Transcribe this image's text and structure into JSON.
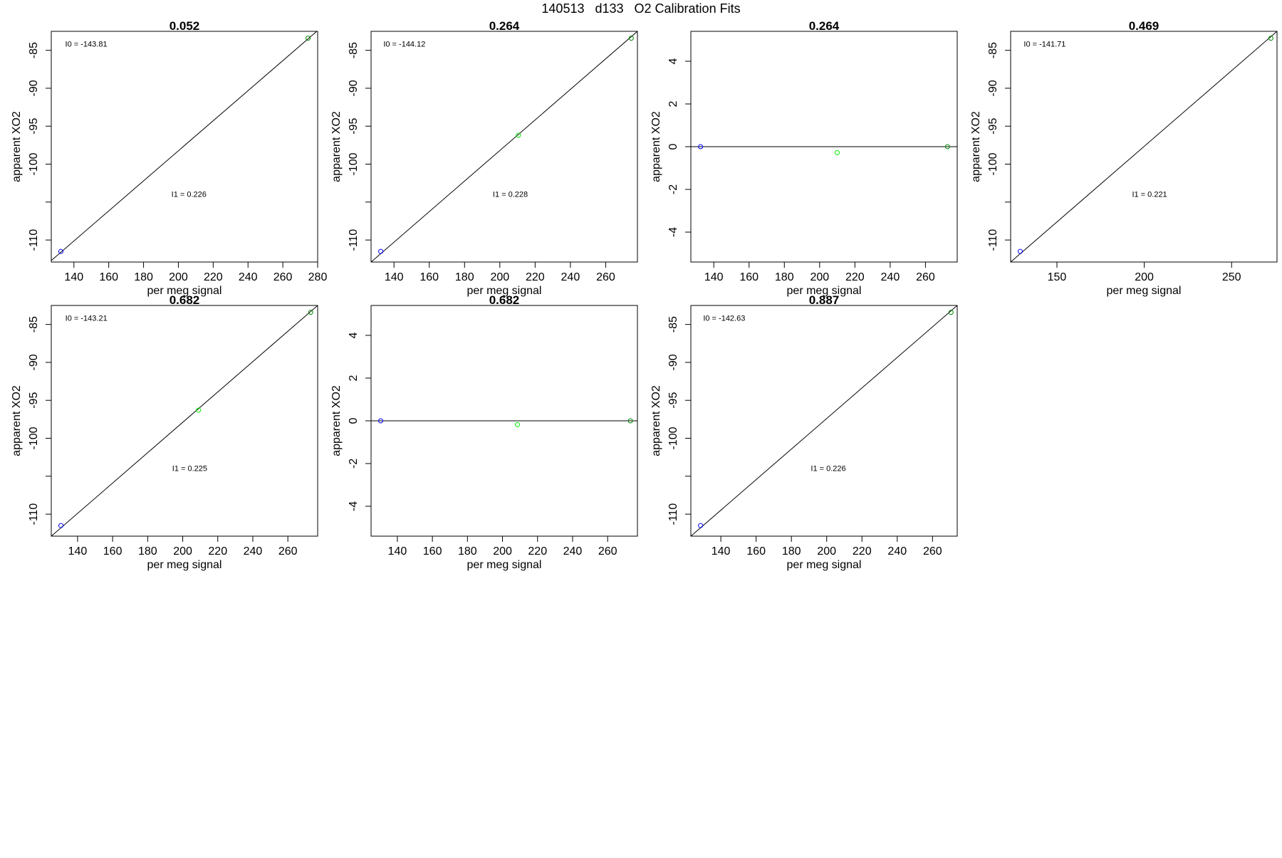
{
  "page": {
    "title": "140513   d133   O2 Calibration Fits"
  },
  "colors": {
    "fit_line": "#000000",
    "point_low": "#0000ff",
    "point_mid": "#00ee00",
    "point_high": "#008800",
    "axis": "#000000"
  },
  "chart_data": [
    {
      "type": "scatter",
      "title": "0.052",
      "xlabel": "per meg signal",
      "ylabel": "apparent XO2",
      "xlim": [
        127,
        280
      ],
      "ylim": [
        -112.9,
        -82.5
      ],
      "xticks": [
        140,
        160,
        180,
        200,
        220,
        240,
        260,
        280
      ],
      "yticks": [
        -110,
        -105,
        -100,
        -95,
        -90,
        -85
      ],
      "yticklabels": [
        "-110",
        "",
        "-100",
        "-95",
        "-90",
        "-85"
      ],
      "points": [
        {
          "x": 132.5,
          "y": -111.5,
          "color": "blue"
        },
        {
          "x": 274.5,
          "y": -83.4,
          "color": "darkgreen"
        }
      ],
      "line": {
        "x1": 127,
        "y1": -112.7,
        "x2": 280,
        "y2": -82.4
      },
      "annotations": [
        {
          "label": "I0 =  -143.81",
          "x": 135,
          "y": -84.5
        },
        {
          "label": "I1 =  0.226",
          "x": 196,
          "y": -104.3
        }
      ]
    },
    {
      "type": "scatter",
      "title": "0.264",
      "xlabel": "per meg signal",
      "ylabel": "apparent XO2",
      "xlim": [
        127,
        278
      ],
      "ylim": [
        -112.9,
        -82.5
      ],
      "xticks": [
        140,
        160,
        180,
        200,
        220,
        240,
        260
      ],
      "yticks": [
        -110,
        -105,
        -100,
        -95,
        -90,
        -85
      ],
      "yticklabels": [
        "-110",
        "",
        "-100",
        "-95",
        "-90",
        "-85"
      ],
      "points": [
        {
          "x": 132.5,
          "y": -111.5,
          "color": "blue"
        },
        {
          "x": 210.5,
          "y": -96.2,
          "color": "green"
        },
        {
          "x": 274.5,
          "y": -83.4,
          "color": "darkgreen"
        }
      ],
      "line": {
        "x1": 127,
        "y1": -112.9,
        "x2": 278,
        "y2": -82.5
      },
      "annotations": [
        {
          "label": "I0 =  -144.12",
          "x": 134,
          "y": -84.5
        },
        {
          "label": "I1 =  0.228",
          "x": 196,
          "y": -104.3
        }
      ]
    },
    {
      "type": "scatter",
      "title": "0.264",
      "xlabel": "per meg signal",
      "ylabel": "apparent XO2",
      "xlim": [
        127,
        278
      ],
      "ylim": [
        -5.4,
        5.4
      ],
      "xticks": [
        140,
        160,
        180,
        200,
        220,
        240,
        260
      ],
      "yticks": [
        -4,
        -2,
        0,
        2,
        4
      ],
      "yticklabels": [
        "-4",
        "-2",
        "0",
        "2",
        "4"
      ],
      "points": [
        {
          "x": 132.5,
          "y": 0.0,
          "color": "blue"
        },
        {
          "x": 210,
          "y": -0.28,
          "color": "green"
        },
        {
          "x": 272.5,
          "y": 0.0,
          "color": "darkgreen"
        }
      ],
      "line": {
        "x1": 127,
        "y1": 0,
        "x2": 278,
        "y2": 0
      },
      "annotations": []
    },
    {
      "type": "scatter",
      "title": "0.469",
      "xlabel": "per meg signal",
      "ylabel": "apparent XO2",
      "xlim": [
        123.5,
        276
      ],
      "ylim": [
        -112.9,
        -82.5
      ],
      "xticks": [
        150,
        200,
        250
      ],
      "yticks": [
        -110,
        -105,
        -100,
        -95,
        -90,
        -85
      ],
      "yticklabels": [
        "-110",
        "",
        "-100",
        "-95",
        "-90",
        "-85"
      ],
      "points": [
        {
          "x": 129,
          "y": -111.5,
          "color": "blue"
        },
        {
          "x": 272.5,
          "y": -83.4,
          "color": "darkgreen"
        }
      ],
      "line": {
        "x1": 123.5,
        "y1": -112.9,
        "x2": 276,
        "y2": -82.5
      },
      "annotations": [
        {
          "label": "I0 =  -141.71",
          "x": 131,
          "y": -84.5
        },
        {
          "label": "I1 =  0.221",
          "x": 193,
          "y": -104.3
        }
      ]
    },
    {
      "type": "scatter",
      "title": "0.682",
      "xlabel": "per meg signal",
      "ylabel": "apparent XO2",
      "xlim": [
        125,
        277
      ],
      "ylim": [
        -112.9,
        -82.5
      ],
      "xticks": [
        140,
        160,
        180,
        200,
        220,
        240,
        260
      ],
      "yticks": [
        -110,
        -105,
        -100,
        -95,
        -90,
        -85
      ],
      "yticklabels": [
        "-110",
        "",
        "-100",
        "-95",
        "-90",
        "-85"
      ],
      "points": [
        {
          "x": 130.5,
          "y": -111.5,
          "color": "blue"
        },
        {
          "x": 209,
          "y": -96.3,
          "color": "green"
        },
        {
          "x": 273,
          "y": -83.4,
          "color": "darkgreen"
        }
      ],
      "line": {
        "x1": 125,
        "y1": -112.9,
        "x2": 277,
        "y2": -82.5
      },
      "annotations": [
        {
          "label": "I0 =  -143.21",
          "x": 133,
          "y": -84.5
        },
        {
          "label": "I1 =  0.225",
          "x": 194,
          "y": -104.3
        }
      ]
    },
    {
      "type": "scatter",
      "title": "0.682",
      "xlabel": "per meg signal",
      "ylabel": "apparent XO2",
      "xlim": [
        125,
        277
      ],
      "ylim": [
        -5.4,
        5.4
      ],
      "xticks": [
        140,
        160,
        180,
        200,
        220,
        240,
        260
      ],
      "yticks": [
        -4,
        -2,
        0,
        2,
        4
      ],
      "yticklabels": [
        "-4",
        "-2",
        "0",
        "2",
        "4"
      ],
      "points": [
        {
          "x": 130.5,
          "y": 0.0,
          "color": "blue"
        },
        {
          "x": 208.5,
          "y": -0.18,
          "color": "green"
        },
        {
          "x": 273,
          "y": 0.0,
          "color": "darkgreen"
        }
      ],
      "line": {
        "x1": 125,
        "y1": 0,
        "x2": 277,
        "y2": 0
      },
      "annotations": []
    },
    {
      "type": "scatter",
      "title": "0.887",
      "xlabel": "per meg signal",
      "ylabel": "apparent XO2",
      "xlim": [
        123,
        274
      ],
      "ylim": [
        -112.9,
        -82.5
      ],
      "xticks": [
        140,
        160,
        180,
        200,
        220,
        240,
        260
      ],
      "yticks": [
        -110,
        -105,
        -100,
        -95,
        -90,
        -85
      ],
      "yticklabels": [
        "-110",
        "",
        "-100",
        "-95",
        "-90",
        "-85"
      ],
      "points": [
        {
          "x": 128.5,
          "y": -111.5,
          "color": "blue"
        },
        {
          "x": 270.5,
          "y": -83.4,
          "color": "darkgreen"
        }
      ],
      "line": {
        "x1": 123,
        "y1": -112.9,
        "x2": 274,
        "y2": -82.5
      },
      "annotations": [
        {
          "label": "I0 =  -142.63",
          "x": 130,
          "y": -84.5
        },
        {
          "label": "I1 =  0.226",
          "x": 191,
          "y": -104.3
        }
      ]
    }
  ]
}
